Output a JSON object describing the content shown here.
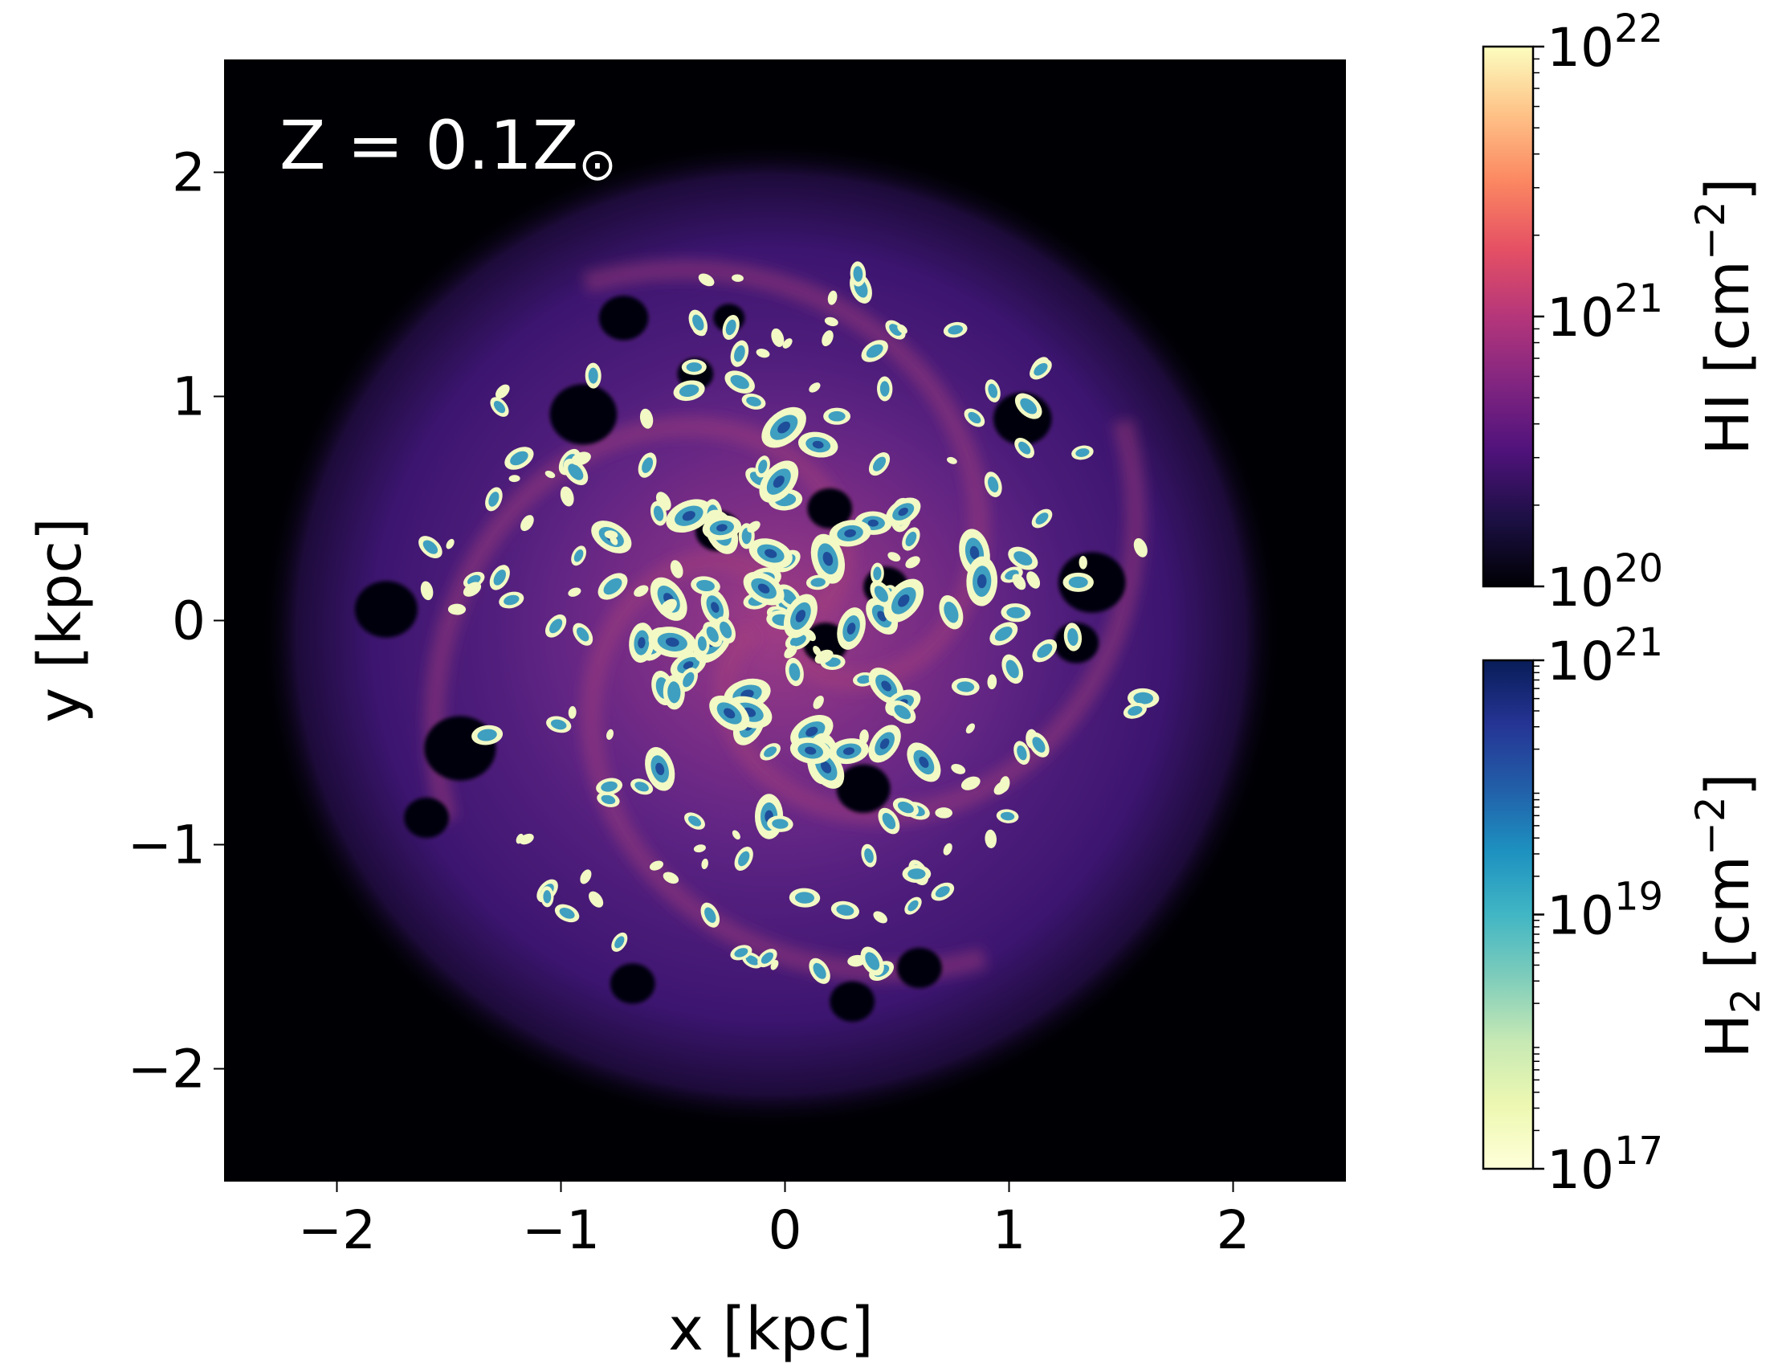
{
  "chart_data": {
    "type": "heatmap",
    "title": "",
    "annotation": {
      "text": "Z = 0.1Z",
      "symbol": "⊙"
    },
    "xlabel": "x [kpc]",
    "ylabel": "y [kpc]",
    "xlim": [
      -2.5,
      2.5
    ],
    "ylim": [
      -2.5,
      2.5
    ],
    "xticks": [
      -2,
      -1,
      0,
      1,
      2
    ],
    "yticks": [
      -2,
      -1,
      0,
      1,
      2
    ],
    "xtick_labels": [
      "−2",
      "−1",
      "0",
      "1",
      "2"
    ],
    "ytick_labels": [
      "−2",
      "−1",
      "0",
      "1",
      "2"
    ],
    "grid": false,
    "colorbars": [
      {
        "quantity": "HI",
        "label": "HI [cm",
        "label_exp": "−2",
        "label_end": "]",
        "scale": "log",
        "range": [
          1e+20,
          1e+22
        ],
        "ticks": [
          {
            "base": "10",
            "exp": "22"
          },
          {
            "base": "10",
            "exp": "21"
          },
          {
            "base": "10",
            "exp": "20"
          }
        ],
        "colormap": [
          "#000004",
          "#1c1044",
          "#4f127b",
          "#812581",
          "#b5367a",
          "#e55064",
          "#fb8761",
          "#fec287",
          "#fcfdbf"
        ]
      },
      {
        "quantity": "H2",
        "label": "H",
        "label_sub": "2",
        "label_rest": " [cm",
        "label_exp": "−2",
        "label_end": "]",
        "scale": "log",
        "range": [
          1e+17,
          1e+21
        ],
        "ticks": [
          {
            "base": "10",
            "exp": "21"
          },
          {
            "base": "10",
            "exp": "19"
          },
          {
            "base": "10",
            "exp": "17"
          }
        ],
        "colormap": [
          "#ffffd9",
          "#edf8b1",
          "#c7e9b4",
          "#7fcdbb",
          "#41b6c4",
          "#1d91c0",
          "#225ea8",
          "#253494",
          "#081d58"
        ]
      }
    ],
    "colors": {
      "background": "#000004",
      "disk_outer": "#2a0f52",
      "disk_mid": "#4b1a78",
      "disk_inner": "#6a2a83",
      "arm": "#a8407a",
      "clump_edge": "#f2f9c4",
      "clump_core": "#3f9fc0",
      "clump_peak": "#1e4e99",
      "bubble": "#05020e"
    }
  }
}
